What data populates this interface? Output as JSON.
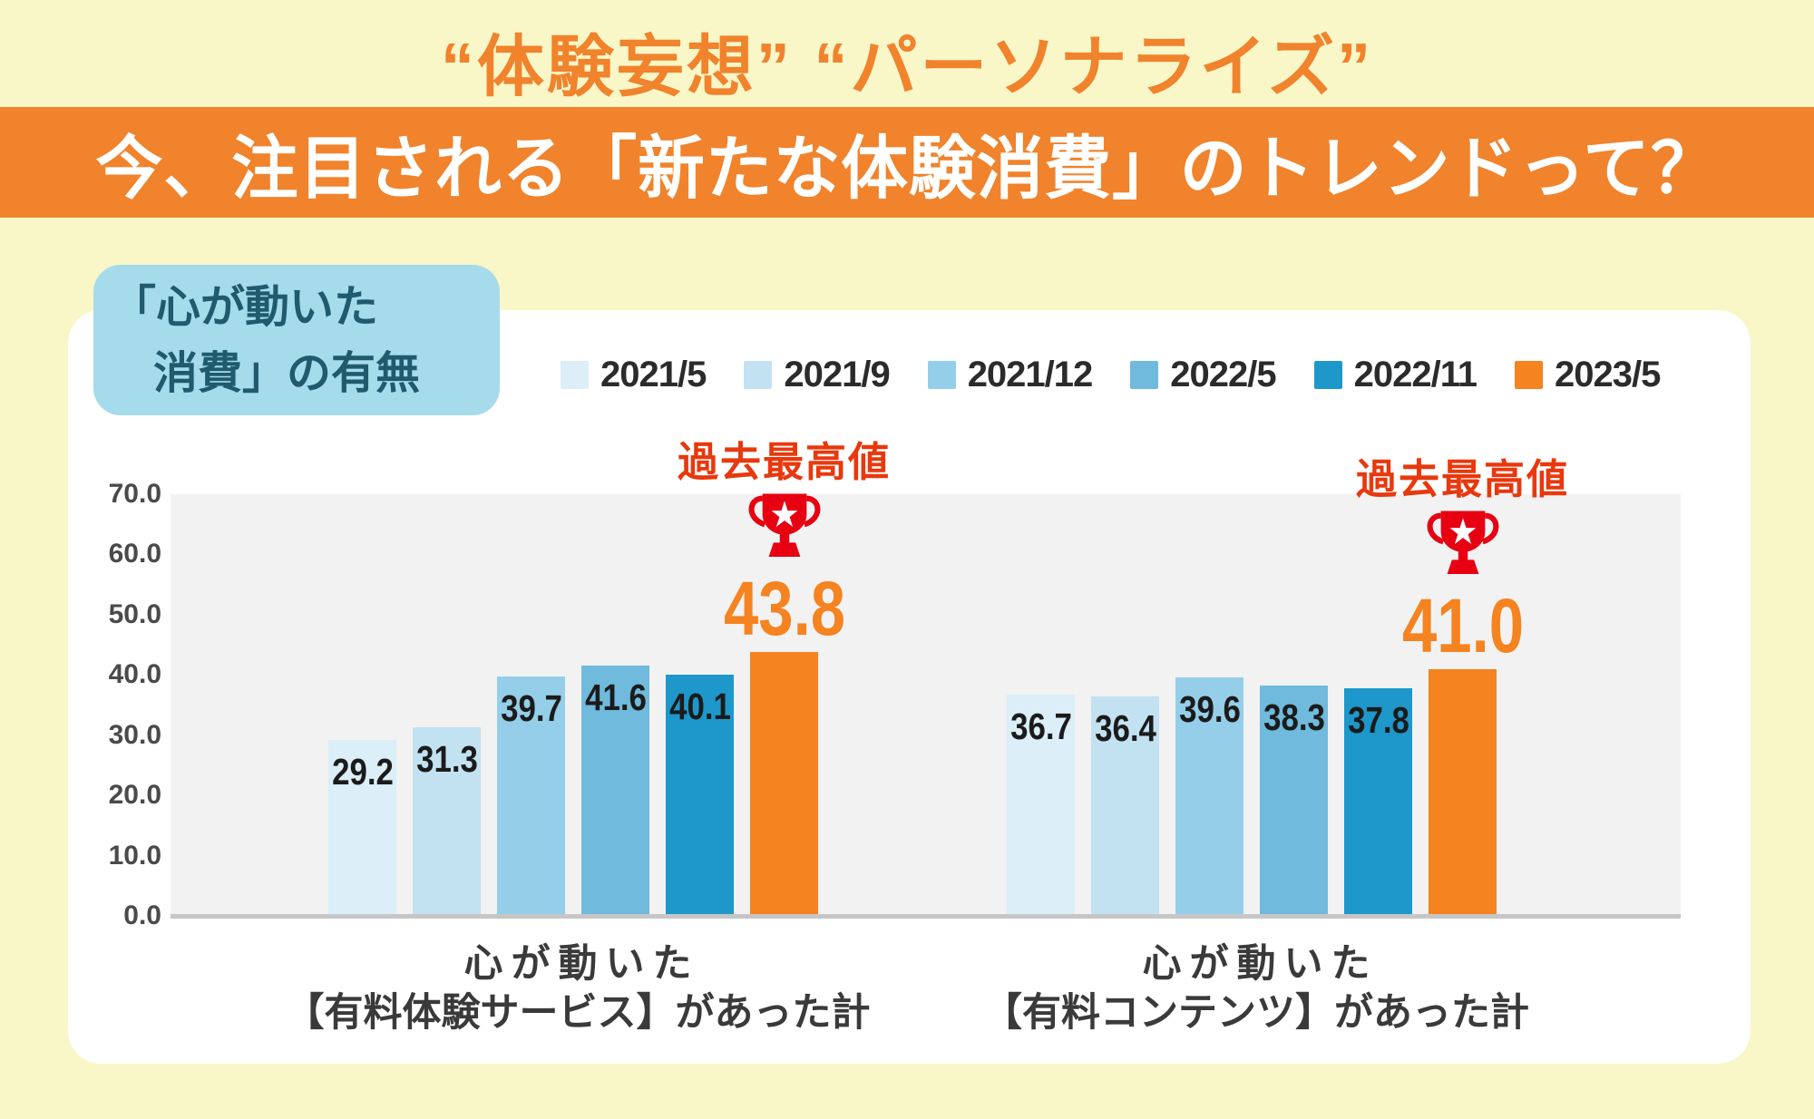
{
  "page": {
    "background": "#F9F6C8"
  },
  "header": {
    "tagline": "“体験妄想” “パーソナライズ”",
    "tagline_color": "#F0832C",
    "title": "今、注目される「新たな体験消費」のトレンドって？",
    "banner_color": "#F0832C"
  },
  "badge": {
    "line1": "「心が動いた",
    "line2": "消費」の有無",
    "bg_color": "#A6DBEB",
    "text_color": "#1F5A6E"
  },
  "chart_data": {
    "type": "bar",
    "title": "「心が動いた消費」の有無",
    "categories": [
      "2021/5",
      "2021/9",
      "2021/12",
      "2022/5",
      "2022/11",
      "2023/5"
    ],
    "series_colors": [
      "#DCEEF8",
      "#C3E2F1",
      "#95CEE9",
      "#6FBADD",
      "#1E97CB",
      "#F5831F"
    ],
    "ylim": [
      0,
      70
    ],
    "yticks": [
      "70.0",
      "60.0",
      "50.0",
      "40.0",
      "30.0",
      "20.0",
      "10.0",
      "0.0"
    ],
    "grid": false,
    "legend_position": "top",
    "plot_bg": "#F2F2F2",
    "axis_line_color": "#C6C6C6",
    "tick_color": "#4A4A4A",
    "value_label_color": "#1B1B1B",
    "annotation_color": "#E8380D",
    "trophy_color": "#E60012",
    "highlight_value_color": "#F5831F",
    "groups": [
      {
        "label_line1": "心が動いた",
        "label_line2": "【有料体験サービス】があった計",
        "values": [
          29.2,
          31.3,
          39.7,
          41.6,
          40.1,
          43.8
        ],
        "annotation": {
          "label": "過去最高値",
          "value": "43.8"
        }
      },
      {
        "label_line1": "心が動いた",
        "label_line2": "【有料コンテンツ】があった計",
        "values": [
          36.7,
          36.4,
          39.6,
          38.3,
          37.8,
          41.0
        ],
        "annotation": {
          "label": "過去最高値",
          "value": "41.0"
        }
      }
    ]
  }
}
